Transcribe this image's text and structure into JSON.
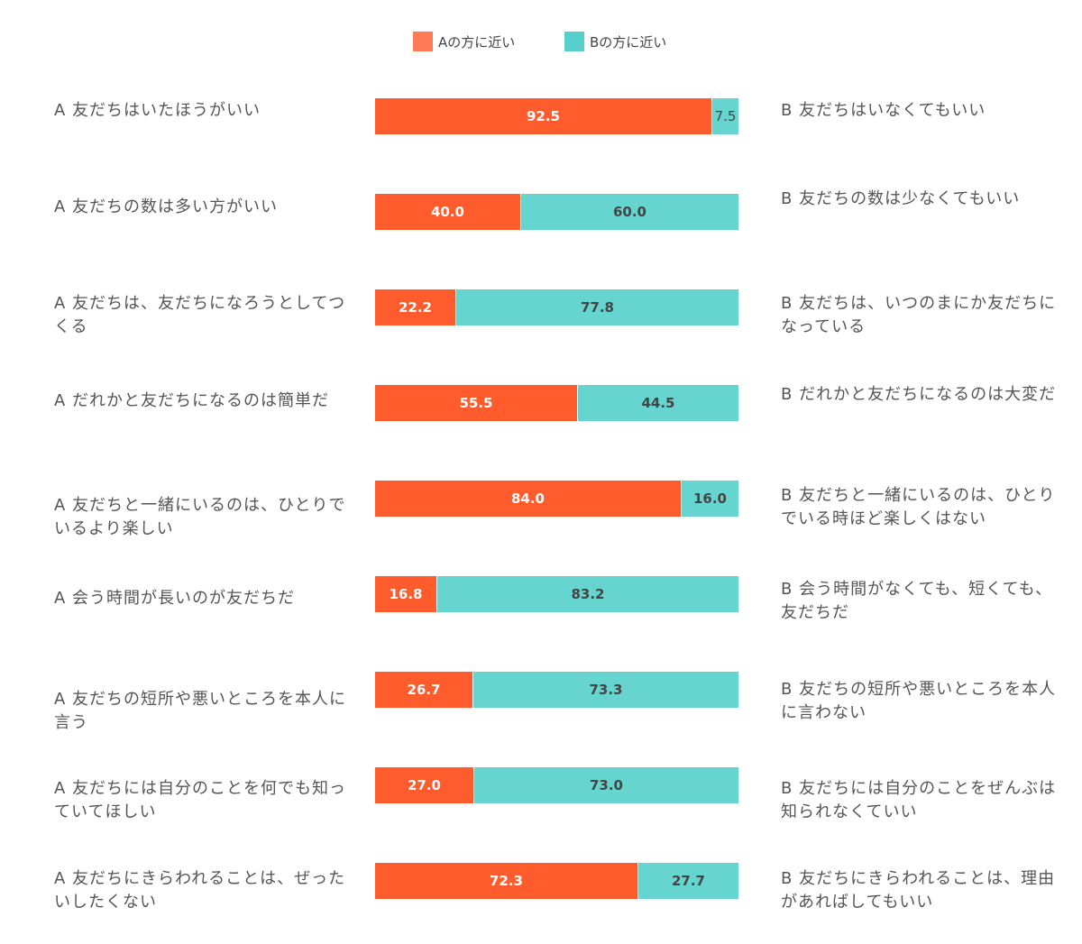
{
  "legend": {
    "a_label": "Aの方に近い",
    "b_label": "Bの方に近い"
  },
  "colors": {
    "a": "#FF5C2E",
    "b": "#66D4CF",
    "legend_a": "#FF7A55",
    "legend_b": "#55D0CA"
  },
  "chart_data": {
    "type": "bar",
    "stacked": true,
    "orientation": "horizontal",
    "categories": [
      "A 友だちはいたほうがいい",
      "A 友だちの数は多い方がいい",
      "A 友だちは、友だちになろうとしてつくる",
      "A だれかと友だちになるのは簡単だ",
      "A 友だちと一緒にいるのは、ひとりでいるより楽しい",
      "A 会う時間が長いのが友だちだ",
      "A 友だちの短所や悪いところを本人に言う",
      "A 友だちには自分のことを何でも知っていてほしい",
      "A 友だちにきらわれることは、ぜったいしたくない"
    ],
    "categories_b": [
      "B 友だちはいなくてもいい",
      "B 友だちの数は少なくてもいい",
      "B 友だちは、いつのまにか友だちになっている",
      "B だれかと友だちになるのは大変だ",
      "B 友だちと一緒にいるのは、ひとりでいる時ほど楽しくはない",
      "B 会う時間がなくても、短くても、友だちだ",
      "B 友だちの短所や悪いところを本人に言わない",
      "B 友だちには自分のことをぜんぶは知られなくていい",
      "B 友だちにきらわれることは、理由があればしてもいい"
    ],
    "series": [
      {
        "name": "Aの方に近い",
        "values": [
          92.5,
          40.0,
          22.2,
          55.5,
          84.0,
          16.8,
          26.7,
          27.0,
          72.3
        ]
      },
      {
        "name": "Bの方に近い",
        "values": [
          7.5,
          60.0,
          77.8,
          44.5,
          16.0,
          83.2,
          73.3,
          73.0,
          27.7
        ]
      }
    ],
    "value_labels_a": [
      "92.5",
      "40.0",
      "22.2",
      "55.5",
      "84.0",
      "16.8",
      "26.7",
      "27.0",
      "72.3"
    ],
    "value_labels_b": [
      "7.5",
      "60.0",
      "77.8",
      "44.5",
      "16.0",
      "83.2",
      "73.3",
      "73.0",
      "27.7"
    ],
    "xlim": [
      0,
      100
    ],
    "legend_position": "top-center",
    "grid": false
  }
}
